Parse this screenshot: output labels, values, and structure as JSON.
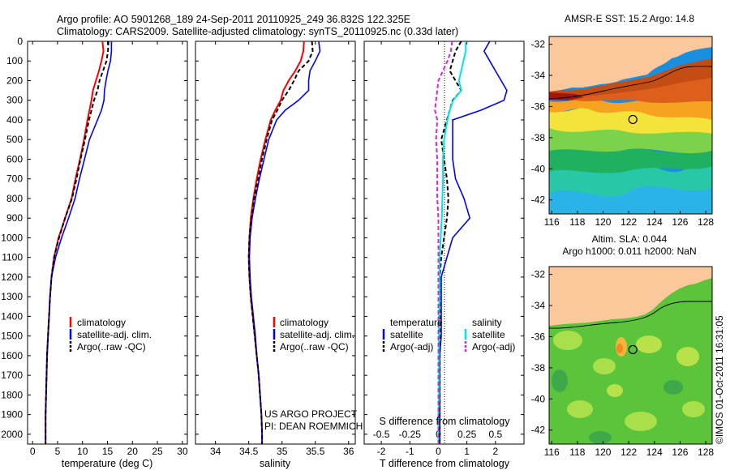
{
  "header": {
    "line1": "Argo profile: AO 5901268_189 24-Sep-2011 20110925_249 36.832S 122.325E",
    "line2": "Climatology: CARS2009. Satellite-adjusted climatology: synTS_20110925.nc (0.33d later)"
  },
  "colors": {
    "climatology": "#ff0000",
    "satellite": "#0000ff",
    "argo": "#000000",
    "satellite_s": "#00e5e5",
    "argo_s": "#e020e0",
    "land": "#fbc89c"
  },
  "legend": {
    "climatology": "climatology",
    "satellite_adj": "satellite-adj. clim.",
    "argo_raw": "Argo(..raw -QC)",
    "temperature_head": "temperature",
    "salinity_head": "salinity",
    "satellite": "satellite",
    "argo_adj": "Argo(-adj)"
  },
  "credits": {
    "project": "US ARGO PROJECT",
    "pi": "PI: DEAN ROEMMICH"
  },
  "stamp": "©IMOS 01-Oct-2011 16:31:05",
  "maps": {
    "sst_title": "AMSR-E SST: 15.2 Argo: 14.8",
    "sla_title1": "Altim. SLA: 0.044",
    "sla_title2": "Argo h1000: 0.011 h2000: NaN",
    "lon_ticks": [
      "116",
      "118",
      "120",
      "122",
      "124",
      "126",
      "128"
    ],
    "lat_ticks": [
      "-32",
      "-34",
      "-36",
      "-38",
      "-40",
      "-42"
    ],
    "float_lon": 122.325,
    "float_lat": -36.832
  },
  "chart_data": [
    {
      "type": "line",
      "xlabel": "temperature (deg C)",
      "ylabel": "",
      "xlim": [
        -1,
        31
      ],
      "ylim": [
        2050,
        0
      ],
      "xticks": [
        0,
        5,
        10,
        15,
        20,
        25,
        30
      ],
      "yticks": [
        0,
        100,
        200,
        300,
        400,
        500,
        600,
        700,
        800,
        900,
        1000,
        1100,
        1200,
        1300,
        1400,
        1500,
        1600,
        1700,
        1800,
        1900,
        2000
      ],
      "depth": [
        0,
        50,
        100,
        150,
        200,
        250,
        300,
        350,
        400,
        500,
        600,
        700,
        800,
        900,
        1000,
        1100,
        1200,
        1300,
        1400,
        1500,
        1600,
        1700,
        1800,
        1900,
        2000,
        2050
      ],
      "series": [
        {
          "name": "climatology",
          "values": [
            14.0,
            14.2,
            13.8,
            13.3,
            12.7,
            12.1,
            11.8,
            11.4,
            11.0,
            10.3,
            9.5,
            8.6,
            7.8,
            6.5,
            5.2,
            4.3,
            3.8,
            3.5,
            3.3,
            3.1,
            2.9,
            2.8,
            2.7,
            2.6,
            2.6,
            2.6
          ]
        },
        {
          "name": "satellite-adj. clim.",
          "values": [
            15.8,
            15.8,
            15.6,
            15.1,
            14.7,
            14.4,
            14.3,
            13.8,
            13.0,
            11.4,
            10.4,
            9.4,
            8.5,
            7.2,
            5.8,
            4.6,
            3.8,
            3.5,
            3.3,
            3.1,
            2.9,
            2.8,
            2.7,
            2.6,
            2.6,
            2.6
          ]
        },
        {
          "name": "Argo(..raw -QC)",
          "values": [
            15.2,
            15.1,
            14.8,
            14.1,
            13.4,
            13.0,
            12.3,
            11.8,
            11.3,
            10.5,
            9.6,
            8.8,
            7.9,
            6.5,
            5.3,
            4.3,
            3.8,
            3.5,
            3.3,
            3.1,
            2.9,
            2.8,
            2.7,
            2.6,
            2.6,
            2.6
          ]
        }
      ]
    },
    {
      "type": "line",
      "xlabel": "salinity",
      "ylabel": "",
      "xlim": [
        33.7,
        36.1
      ],
      "ylim": [
        2050,
        0
      ],
      "xticks": [
        34,
        34.5,
        35,
        35.5,
        36
      ],
      "depth": [
        0,
        50,
        100,
        150,
        200,
        250,
        300,
        350,
        400,
        500,
        600,
        700,
        800,
        900,
        1000,
        1100,
        1200,
        1300,
        1400,
        1500,
        1600,
        1700,
        1800,
        1900,
        2000,
        2050
      ],
      "series": [
        {
          "name": "climatology",
          "values": [
            35.33,
            35.32,
            35.28,
            35.2,
            35.1,
            35.02,
            34.98,
            34.9,
            34.83,
            34.75,
            34.68,
            34.62,
            34.57,
            34.53,
            34.51,
            34.5,
            34.51,
            34.53,
            34.56,
            34.59,
            34.62,
            34.65,
            34.67,
            34.69,
            34.7,
            34.7
          ]
        },
        {
          "name": "satellite-adj. clim.",
          "values": [
            35.55,
            35.57,
            35.5,
            35.42,
            35.4,
            35.4,
            35.25,
            35.05,
            34.92,
            34.8,
            34.73,
            34.66,
            34.6,
            34.55,
            34.52,
            34.51,
            34.52,
            34.54,
            34.57,
            34.6,
            34.62,
            34.65,
            34.67,
            34.69,
            34.7,
            34.7
          ]
        },
        {
          "name": "Argo(..raw -QC)",
          "values": [
            35.45,
            35.46,
            35.4,
            35.25,
            35.18,
            35.1,
            35.0,
            34.93,
            34.85,
            34.77,
            34.7,
            34.64,
            34.58,
            34.54,
            34.51,
            34.5,
            34.51,
            34.53,
            34.56,
            34.59,
            34.62,
            34.65,
            34.67,
            34.69,
            34.7,
            34.7
          ]
        }
      ]
    },
    {
      "type": "line",
      "xlabel": "T difference from climatology",
      "ylabel": "",
      "x2label": "S difference from climatology",
      "xlim": [
        -2.6,
        3.0
      ],
      "ylim": [
        2050,
        0
      ],
      "xticks": [
        -2,
        -1,
        0,
        1,
        2
      ],
      "x2ticks": [
        "-0.5",
        "-0.25",
        "0",
        "0.25",
        "0.5"
      ],
      "depth": [
        0,
        50,
        100,
        150,
        200,
        250,
        300,
        350,
        400,
        500,
        600,
        700,
        800,
        900,
        1000,
        1100,
        1200,
        1300,
        1400,
        1500,
        1600,
        1700,
        1800,
        1900,
        2000,
        2050
      ],
      "series": [
        {
          "name": "temperature satellite",
          "values": [
            1.8,
            1.6,
            1.8,
            2.0,
            2.2,
            2.4,
            2.3,
            1.5,
            0.5,
            0.5,
            0.5,
            0.6,
            0.9,
            1.1,
            0.5,
            0.3,
            0.1,
            0.1,
            0.1,
            0.1,
            0.05,
            0.05,
            0.05,
            0.05,
            0.05,
            0.05
          ]
        },
        {
          "name": "temperature Argo(-adj)",
          "values": [
            0.8,
            0.6,
            0.5,
            0.4,
            0.6,
            0.8,
            0.5,
            0.4,
            0.3,
            0.1,
            0.2,
            0.3,
            0.35,
            0.3,
            0.2,
            0.1,
            0.05,
            0.05,
            0.05,
            0.05,
            0.05,
            0.05,
            0.05,
            0.05,
            0.05,
            0.05
          ]
        },
        {
          "name": "salinity satellite",
          "values": [
            0.24,
            0.24,
            0.22,
            0.2,
            0.18,
            0.2,
            0.13,
            0.1,
            0.08,
            0.05,
            0.04,
            0.04,
            0.035,
            0.03,
            0.02,
            0.01,
            0.01,
            0.01,
            0.005,
            0.005,
            0.005,
            0.005,
            0.005,
            0.0,
            0.0,
            0.0
          ]
        },
        {
          "name": "salinity Argo(-adj)",
          "values": [
            0.12,
            0.11,
            0.08,
            0.04,
            0.0,
            -0.01,
            -0.02,
            -0.03,
            -0.01,
            -0.02,
            -0.01,
            -0.01,
            -0.01,
            0.0,
            0.0,
            0.0,
            0.0,
            0.0,
            0.0,
            0.0,
            0.0,
            0.0,
            0.0,
            0.0,
            0.0,
            0.0
          ]
        }
      ]
    }
  ]
}
